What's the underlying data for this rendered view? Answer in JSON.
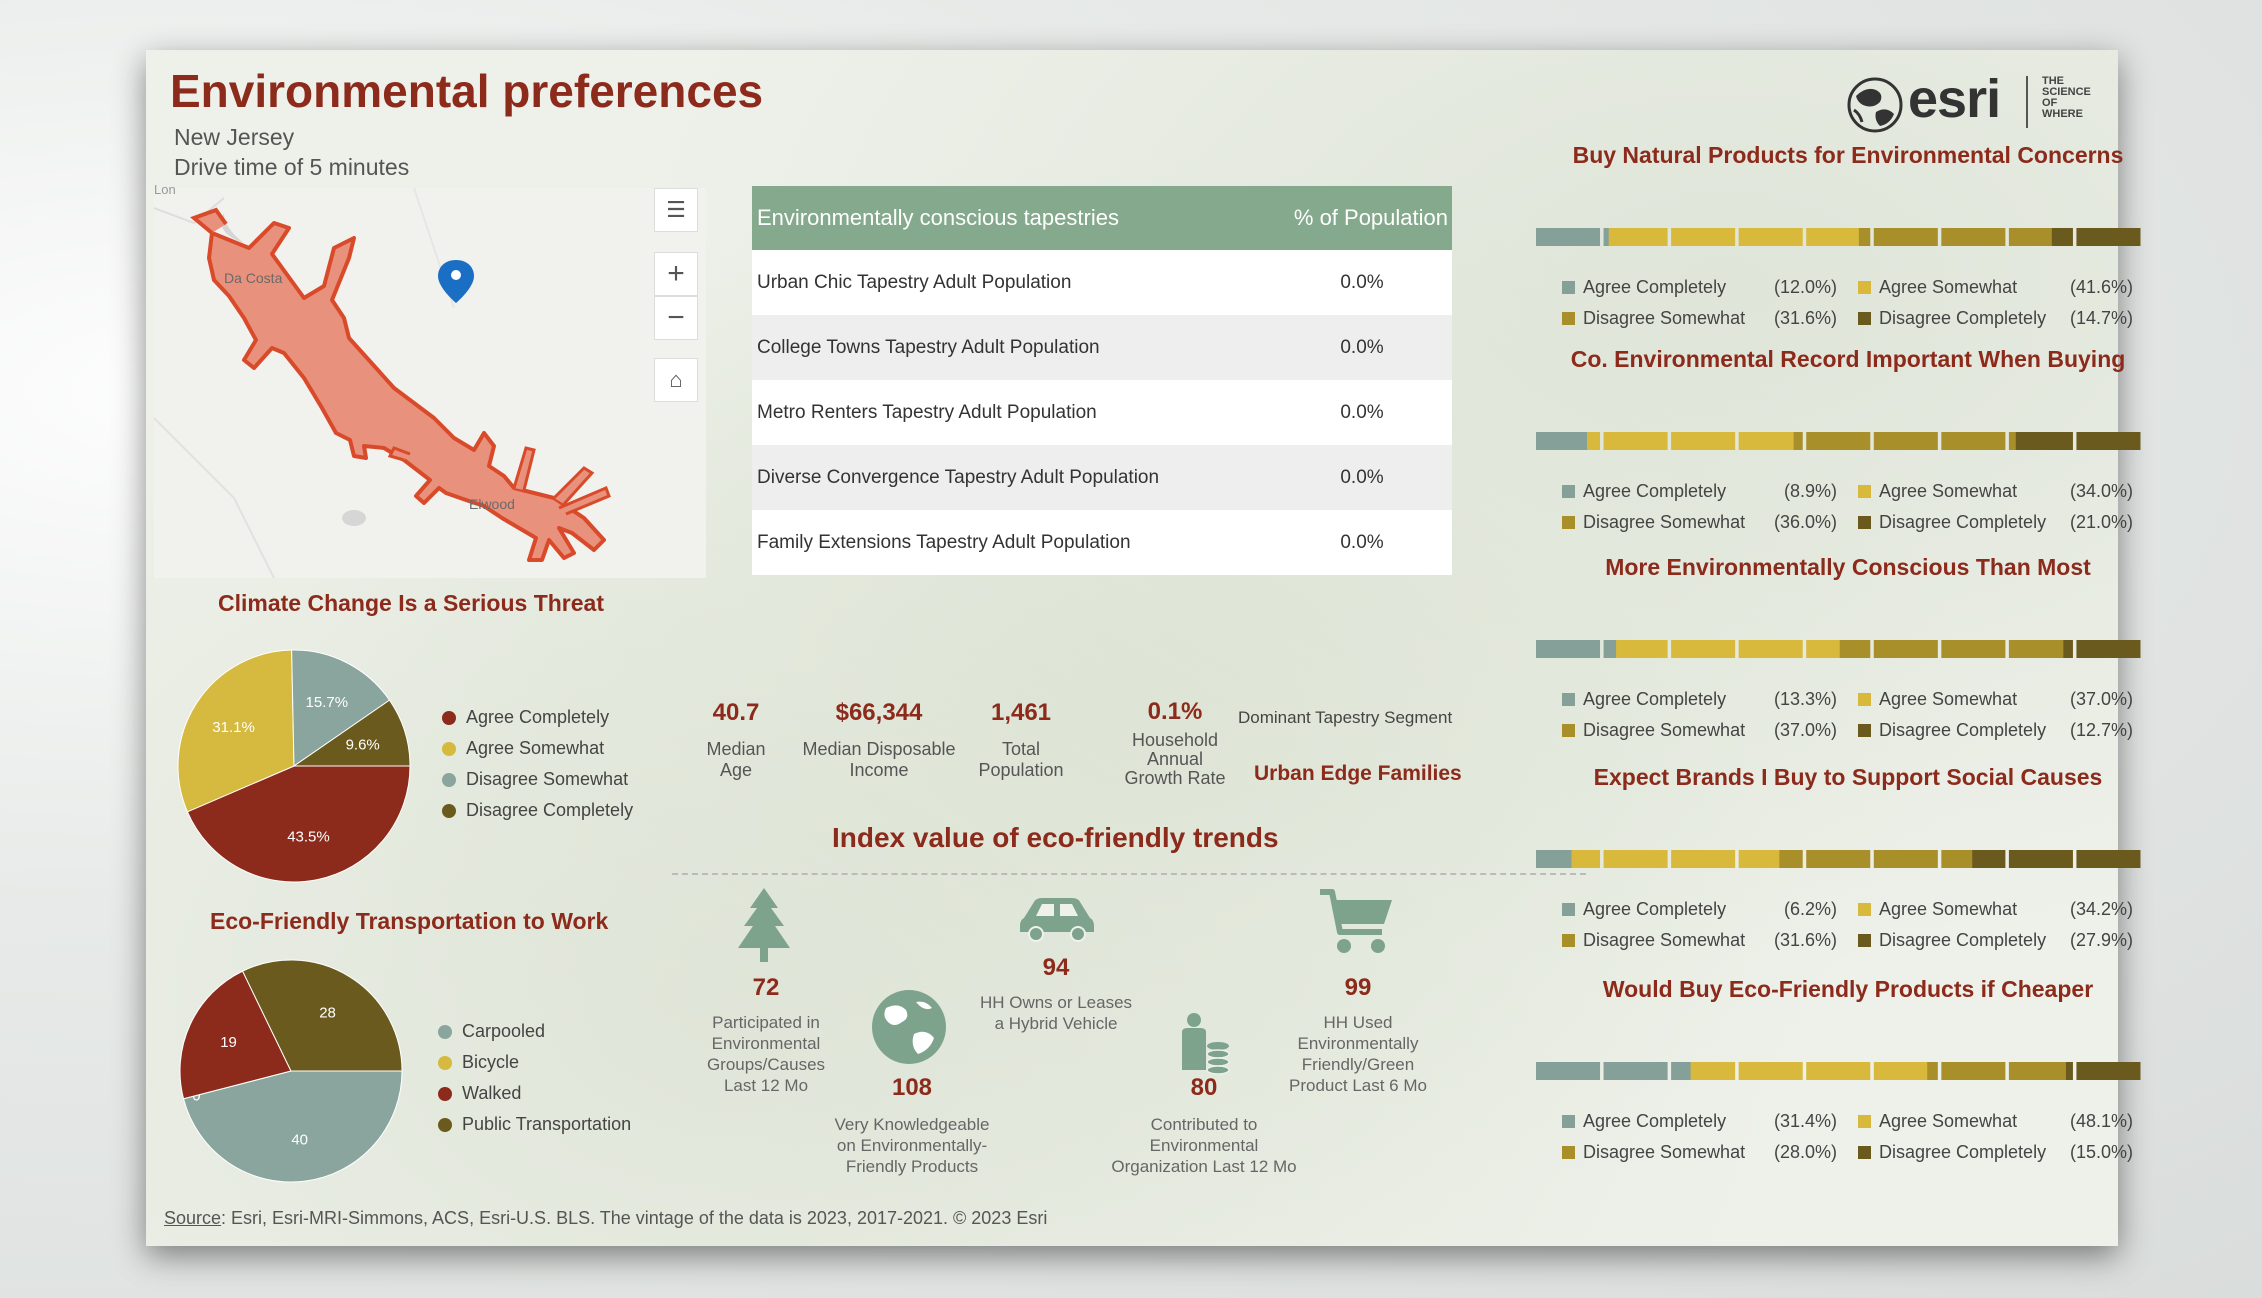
{
  "header": {
    "title": "Environmental preferences",
    "location": "New Jersey",
    "drive_time": "Drive time of 5 minutes",
    "logo_text": "esri",
    "logo_tagline": [
      "THE",
      "SCIENCE",
      "OF",
      "WHERE"
    ]
  },
  "map": {
    "labels": {
      "place1": "Da Costa",
      "place2": "Elwood",
      "top_cut": "Lon"
    },
    "controls": [
      "legend-icon",
      "zoom-in-icon",
      "zoom-out-icon",
      "home-icon"
    ],
    "zoom_in": "+",
    "zoom_out": "−",
    "colors": {
      "area_fill": "#e8917c",
      "area_stroke": "#d94a2a",
      "pin": "#1a6fc4"
    }
  },
  "table": {
    "headers": [
      "Environmentally conscious tapestries",
      "% of Population"
    ],
    "rows": [
      {
        "name": "Urban Chic Tapestry Adult Population",
        "pct": "0.0%"
      },
      {
        "name": "College Towns Tapestry Adult Population",
        "pct": "0.0%"
      },
      {
        "name": "Metro Renters Tapestry Adult Population",
        "pct": "0.0%"
      },
      {
        "name": "Diverse Convergence Tapestry Adult Population",
        "pct": "0.0%"
      },
      {
        "name": "Family Extensions Tapestry Adult Population",
        "pct": "0.0%"
      }
    ]
  },
  "climate": {
    "title": "Climate Change Is a Serious Threat",
    "legend": [
      "Agree Completely",
      "Agree Somewhat",
      "Disagree Somewhat",
      "Disagree Completely"
    ]
  },
  "transport": {
    "title": "Eco-Friendly Transportation to Work",
    "legend": [
      "Carpooled",
      "Bicycle",
      "Walked",
      "Public Transportation"
    ]
  },
  "stats": [
    {
      "value": "40.7",
      "label": [
        "Median",
        "Age"
      ]
    },
    {
      "value": "$66,344",
      "label": [
        "Median Disposable",
        "Income"
      ]
    },
    {
      "value": "1,461",
      "label": [
        "Total",
        "Population"
      ]
    },
    {
      "value": "0.1%",
      "label": [
        "Household",
        "Annual",
        "Growth Rate"
      ]
    }
  ],
  "segment": {
    "label": "Dominant Tapestry Segment",
    "value": "Urban Edge Families"
  },
  "index": {
    "title": "Index value of eco-friendly trends",
    "items": [
      {
        "value": "72",
        "label": [
          "Participated in",
          "Environmental",
          "Groups/Causes",
          "Last 12 Mo"
        ],
        "icon": "tree-icon"
      },
      {
        "value": "108",
        "label": [
          "Very Knowledgeable",
          "on Environmentally-",
          "Friendly Products"
        ],
        "icon": "globe-icon"
      },
      {
        "value": "94",
        "label": [
          "HH Owns or Leases",
          "a Hybrid Vehicle"
        ],
        "icon": "car-icon"
      },
      {
        "value": "80",
        "label": [
          "Contributed to",
          "Environmental",
          "Organization Last 12 Mo"
        ],
        "icon": "donor-coins-icon"
      },
      {
        "value": "99",
        "label": [
          "HH Used",
          "Environmentally",
          "Friendly/Green",
          "Product Last 6 Mo"
        ],
        "icon": "shopping-cart-icon"
      }
    ]
  },
  "right_charts": [
    {
      "title": "Buy Natural Products for Environmental Concerns",
      "labels": [
        "Agree Completely",
        "Agree Somewhat",
        "Disagree Somewhat",
        "Disagree Completely"
      ],
      "values": [
        "(12.0%)",
        "(41.6%)",
        "(31.6%)",
        "(14.7%)"
      ],
      "pcts": [
        12.0,
        41.6,
        31.6,
        14.7
      ]
    },
    {
      "title": "Co. Environmental Record Important When Buying",
      "labels": [
        "Agree Completely",
        "Agree Somewhat",
        "Disagree Somewhat",
        "Disagree Completely"
      ],
      "values": [
        "(8.9%)",
        "(34.0%)",
        "(36.0%)",
        "(21.0%)"
      ],
      "pcts": [
        8.9,
        34.0,
        36.0,
        21.0
      ]
    },
    {
      "title": "More Environmentally Conscious Than Most",
      "labels": [
        "Agree Completely",
        "Agree Somewhat",
        "Disagree Somewhat",
        "Disagree Completely"
      ],
      "values": [
        "(13.3%)",
        "(37.0%)",
        "(37.0%)",
        "(12.7%)"
      ],
      "pcts": [
        13.3,
        37.0,
        37.0,
        12.7
      ]
    },
    {
      "title": "Expect Brands I Buy to Support Social Causes",
      "labels": [
        "Agree Completely",
        "Agree Somewhat",
        "Disagree Somewhat",
        "Disagree Completely"
      ],
      "values": [
        "(6.2%)",
        "(34.2%)",
        "(31.6%)",
        "(27.9%)"
      ],
      "pcts": [
        6.2,
        34.2,
        31.6,
        27.9
      ]
    },
    {
      "title": "Would Buy Eco-Friendly Products if Cheaper",
      "labels": [
        "Agree Completely",
        "Agree Somewhat",
        "Disagree Somewhat",
        "Disagree Completely"
      ],
      "values": [
        "(31.4%)",
        "(48.1%)",
        "(28.0%)",
        "(15.0%)"
      ],
      "pcts": [
        31.4,
        48.1,
        28.0,
        15.0
      ]
    }
  ],
  "source": {
    "label": "Source",
    "text": ": Esri, Esri-MRI-Simmons, ACS, Esri-U.S. BLS. The vintage of the data is 2023, 2017-2021. © 2023 Esri"
  },
  "colors": {
    "title_red": "#8c2a1b",
    "agree_completely": "#84a098",
    "agree_somewhat": "#d8b93c",
    "disagree_somewhat": "#a98f2a",
    "disagree_completely": "#6b5a1e",
    "climate_agree_completely": "#8c2a1b",
    "climate_agree_somewhat": "#d6b93f",
    "climate_disagree_somewhat": "#8aa59d",
    "climate_disagree_completely": "#6b5a1e",
    "header_green": "#84a98c"
  },
  "chart_data": [
    {
      "type": "pie",
      "title": "Climate Change Is a Serious Threat",
      "categories": [
        "Agree Completely",
        "Agree Somewhat",
        "Disagree Somewhat",
        "Disagree Completely"
      ],
      "values": [
        43.5,
        31.1,
        15.7,
        9.6
      ],
      "data_labels": [
        "43.5%",
        "31.1%",
        "15.7%",
        "9.6%"
      ],
      "colors": [
        "#8c2a1b",
        "#d6b93f",
        "#8aa59d",
        "#6b5a1e"
      ],
      "legend": "right"
    },
    {
      "type": "pie",
      "title": "Eco-Friendly Transportation to Work",
      "categories": [
        "Carpooled",
        "Bicycle",
        "Walked",
        "Public Transportation"
      ],
      "values": [
        40,
        0,
        19,
        28
      ],
      "data_labels": [
        "40",
        "0",
        "19",
        "28"
      ],
      "colors": [
        "#8aa59d",
        "#d6b93f",
        "#8c2a1b",
        "#6b5a1e"
      ],
      "legend": "right"
    }
  ]
}
